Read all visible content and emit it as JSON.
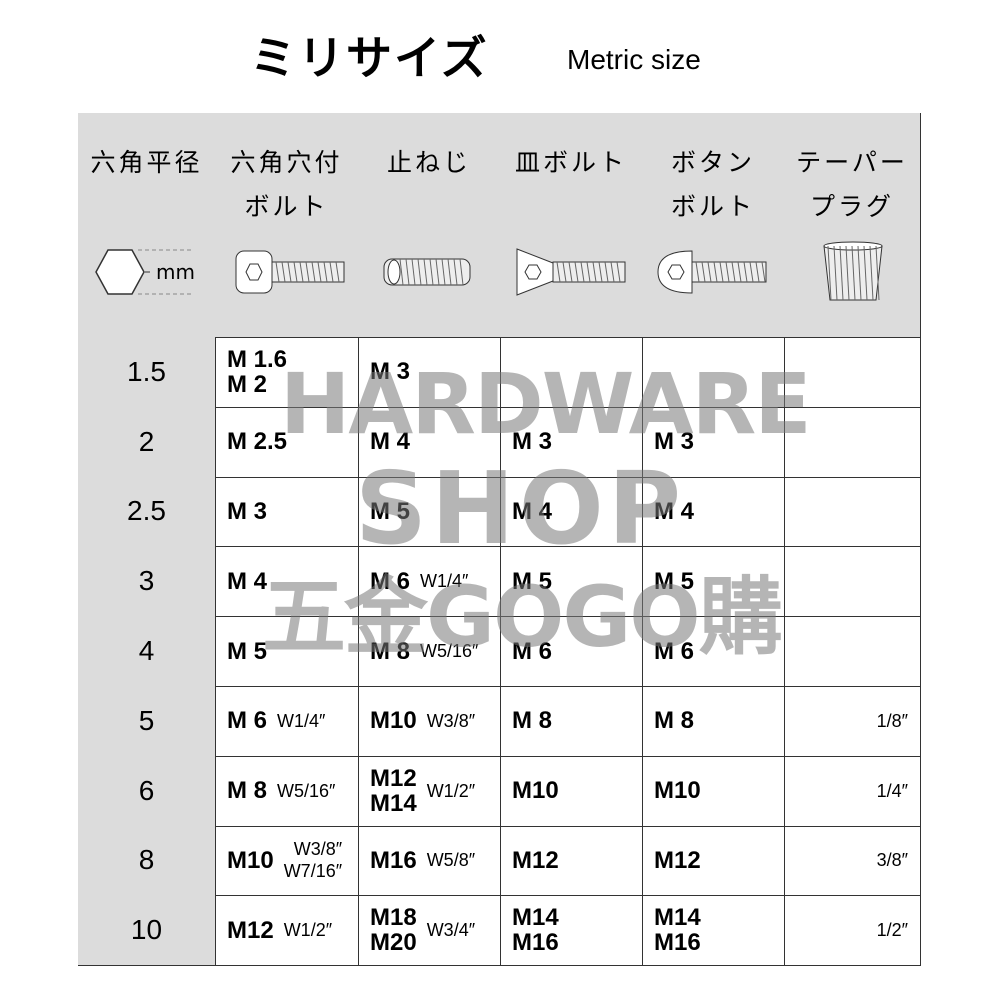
{
  "title": "ミリサイズ",
  "subtitle": "Metric size",
  "header": {
    "columns": [
      [
        "六角平径"
      ],
      [
        "六角穴付",
        "ボルト"
      ],
      [
        "止ねじ"
      ],
      [
        "皿ボルト"
      ],
      [
        "ボタン",
        "ボルト"
      ],
      [
        "テーパー",
        "プラグ"
      ]
    ],
    "hex_unit": "mm"
  },
  "table": {
    "rows": [
      {
        "size": "1.5",
        "cells": [
          {
            "main": [
              "M 1.6",
              "M 2"
            ]
          },
          {
            "main": [
              "M 3"
            ]
          },
          null,
          null,
          null
        ]
      },
      {
        "size": "2",
        "cells": [
          {
            "main": [
              "M 2.5"
            ]
          },
          {
            "main": [
              "M 4"
            ]
          },
          {
            "main": [
              "M 3"
            ]
          },
          {
            "main": [
              "M 3"
            ]
          },
          null
        ]
      },
      {
        "size": "2.5",
        "cells": [
          {
            "main": [
              "M 3"
            ]
          },
          {
            "main": [
              "M 5"
            ]
          },
          {
            "main": [
              "M 4"
            ]
          },
          {
            "main": [
              "M 4"
            ]
          },
          null
        ]
      },
      {
        "size": "3",
        "cells": [
          {
            "main": [
              "M 4"
            ]
          },
          {
            "main": [
              "M 6"
            ],
            "inch": [
              "W1/4″"
            ]
          },
          {
            "main": [
              "M 5"
            ]
          },
          {
            "main": [
              "M 5"
            ]
          },
          null
        ]
      },
      {
        "size": "4",
        "cells": [
          {
            "main": [
              "M 5"
            ]
          },
          {
            "main": [
              "M 8"
            ],
            "inch": [
              "W5/16″"
            ]
          },
          {
            "main": [
              "M 6"
            ]
          },
          {
            "main": [
              "M 6"
            ]
          },
          null
        ]
      },
      {
        "size": "5",
        "cells": [
          {
            "main": [
              "M 6"
            ],
            "inch": [
              "W1/4″"
            ]
          },
          {
            "main": [
              "M10"
            ],
            "inch": [
              "W3/8″"
            ]
          },
          {
            "main": [
              "M 8"
            ]
          },
          {
            "main": [
              "M 8"
            ]
          },
          {
            "inch": [
              "1/8″"
            ]
          }
        ]
      },
      {
        "size": "6",
        "cells": [
          {
            "main": [
              "M 8"
            ],
            "inch": [
              "W5/16″"
            ]
          },
          {
            "main": [
              "M12",
              "M14"
            ],
            "inch": [
              "W1/2″"
            ]
          },
          {
            "main": [
              "M10"
            ]
          },
          {
            "main": [
              "M10"
            ]
          },
          {
            "inch": [
              "1/4″"
            ]
          }
        ]
      },
      {
        "size": "8",
        "cells": [
          {
            "main": [
              "M10"
            ],
            "inch": [
              "W3/8″",
              "W7/16″"
            ]
          },
          {
            "main": [
              "M16"
            ],
            "inch": [
              "W5/8″"
            ]
          },
          {
            "main": [
              "M12"
            ]
          },
          {
            "main": [
              "M12"
            ]
          },
          {
            "inch": [
              "3/8″"
            ]
          }
        ]
      },
      {
        "size": "10",
        "cells": [
          {
            "main": [
              "M12"
            ],
            "inch": [
              "W1/2″"
            ]
          },
          {
            "main": [
              "M18",
              "M20"
            ],
            "inch": [
              "W3/4″"
            ]
          },
          {
            "main": [
              "M14",
              "M16"
            ]
          },
          {
            "main": [
              "M14",
              "M16"
            ]
          },
          {
            "inch": [
              "1/2″"
            ]
          }
        ]
      }
    ]
  },
  "watermark": [
    "HARDWARE",
    "SHOP",
    "五金GOGO購"
  ]
}
